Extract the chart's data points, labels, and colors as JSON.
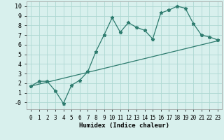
{
  "xlabel": "Humidex (Indice chaleur)",
  "background_color": "#d8f0ed",
  "line_color": "#2d7b6e",
  "grid_color": "#aed8d2",
  "xlim": [
    -0.5,
    23.5
  ],
  "ylim": [
    -0.7,
    10.5
  ],
  "xticks": [
    0,
    1,
    2,
    3,
    4,
    5,
    6,
    7,
    8,
    9,
    10,
    11,
    12,
    13,
    14,
    15,
    16,
    17,
    18,
    19,
    20,
    21,
    22,
    23
  ],
  "yticks": [
    0,
    1,
    2,
    3,
    4,
    5,
    6,
    7,
    8,
    9,
    10
  ],
  "ytick_labels": [
    "-0",
    "1",
    "2",
    "3",
    "4",
    "5",
    "6",
    "7",
    "8",
    "9",
    "10"
  ],
  "curve1_x": [
    0,
    1,
    2,
    3,
    4,
    5,
    6,
    7,
    8,
    9,
    10,
    11,
    12,
    13,
    14,
    15,
    16,
    17,
    18,
    19,
    20,
    21,
    22,
    23
  ],
  "curve1_y": [
    1.7,
    2.2,
    2.2,
    1.2,
    -0.1,
    1.8,
    2.3,
    3.2,
    5.3,
    7.0,
    8.8,
    7.3,
    8.3,
    7.8,
    7.5,
    6.6,
    9.3,
    9.6,
    10.0,
    9.8,
    8.2,
    7.0,
    6.8,
    6.5
  ],
  "curve2_x": [
    0,
    23
  ],
  "curve2_y": [
    1.7,
    6.4
  ],
  "marker": "*",
  "markersize": 3.5,
  "linewidth": 0.9,
  "tick_fontsize": 5.5,
  "xlabel_fontsize": 6.5
}
